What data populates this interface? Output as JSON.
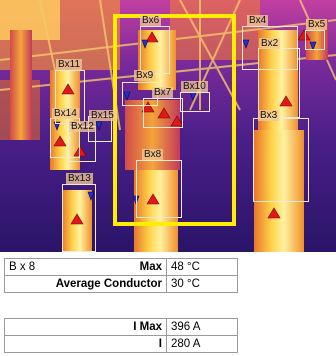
{
  "thermal_image": {
    "rois": [
      {
        "id": "bx6",
        "label": "Bx6"
      },
      {
        "id": "bx4",
        "label": "Bx4"
      },
      {
        "id": "bx5",
        "label": "Bx5"
      },
      {
        "id": "bx2",
        "label": "Bx2"
      },
      {
        "id": "bx11",
        "label": "Bx11"
      },
      {
        "id": "bx9",
        "label": "Bx9"
      },
      {
        "id": "bx10",
        "label": "Bx10"
      },
      {
        "id": "bx7",
        "label": "Bx7"
      },
      {
        "id": "bx14",
        "label": "Bx14"
      },
      {
        "id": "bx12",
        "label": "Bx12"
      },
      {
        "id": "bx15",
        "label": "Bx15"
      },
      {
        "id": "bx3",
        "label": "Bx3"
      },
      {
        "id": "bx8",
        "label": "Bx8"
      },
      {
        "id": "bx13",
        "label": "Bx13"
      }
    ],
    "colors": {
      "highlight_frame": "#ffee00",
      "max_marker": "#e01818",
      "min_marker": "#2030d0"
    }
  },
  "measurements": {
    "row1": {
      "name": "B x 8",
      "label": "Max",
      "value": "48 °C"
    },
    "row2": {
      "label": "Average Conductor",
      "value": "30 °C"
    }
  },
  "currents": {
    "row1": {
      "label": "I Max",
      "value": "396 A"
    },
    "row2": {
      "label": "I",
      "value": "280 A"
    }
  }
}
